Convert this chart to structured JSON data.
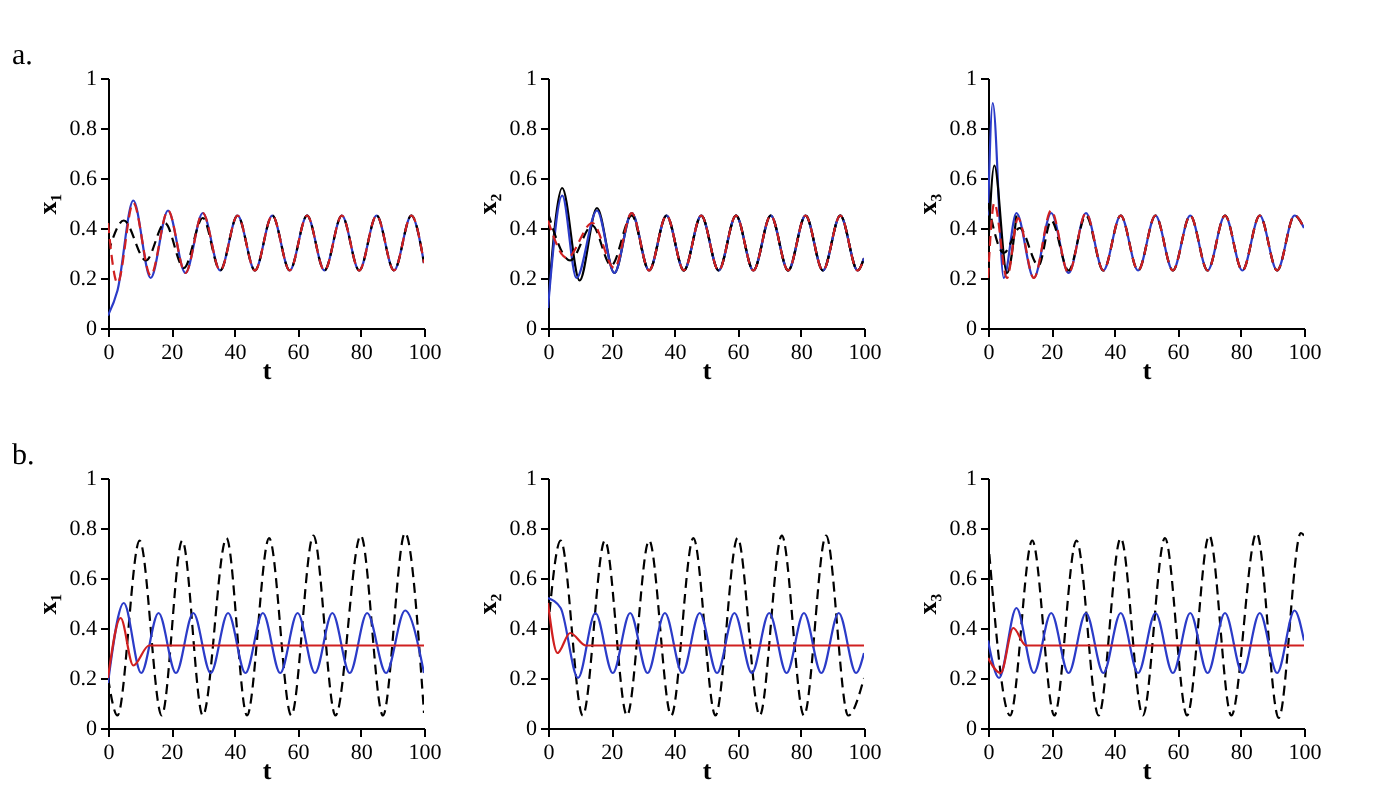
{
  "chart_data": [
    {
      "type": "line",
      "annotations": [
        "a."
      ],
      "xlabel": "t",
      "ylabel": "x₁",
      "xlim": [
        0,
        100
      ],
      "ylim": [
        0,
        1
      ],
      "xticks": [
        0,
        20,
        40,
        60,
        80,
        100
      ],
      "yticks": [
        0,
        0.2,
        0.4,
        0.6,
        0.8,
        1
      ],
      "grid": false,
      "series": [
        {
          "color": "#2b3bc8",
          "line_style": "solid",
          "x": [
            0,
            3,
            8,
            13.5,
            19,
            24.5,
            30,
            35.5,
            41,
            46.5,
            52,
            57.5,
            63,
            68.5,
            74,
            79.5,
            85,
            90.5,
            96,
            100
          ],
          "values": [
            0.05,
            0.15,
            0.51,
            0.2,
            0.47,
            0.22,
            0.46,
            0.23,
            0.45,
            0.23,
            0.45,
            0.23,
            0.45,
            0.23,
            0.45,
            0.23,
            0.45,
            0.23,
            0.45,
            0.26
          ]
        },
        {
          "color": "#000000",
          "line_style": "dashed",
          "x": [
            0,
            5,
            12,
            18,
            24,
            30,
            35.5,
            41,
            46.5,
            52,
            57.5,
            63,
            68.5,
            74,
            79.5,
            85,
            90.5,
            96,
            100
          ],
          "values": [
            0.3,
            0.43,
            0.27,
            0.42,
            0.24,
            0.44,
            0.23,
            0.45,
            0.23,
            0.45,
            0.23,
            0.45,
            0.23,
            0.45,
            0.23,
            0.45,
            0.23,
            0.45,
            0.26
          ]
        },
        {
          "color": "#d02020",
          "line_style": "dashed",
          "x": [
            0,
            3,
            8,
            13.5,
            19,
            24.5,
            30,
            35.5,
            41,
            46.5,
            52,
            57.5,
            63,
            68.5,
            74,
            79.5,
            85,
            90.5,
            96,
            100
          ],
          "values": [
            0.42,
            0.18,
            0.5,
            0.21,
            0.47,
            0.22,
            0.46,
            0.23,
            0.45,
            0.23,
            0.45,
            0.23,
            0.45,
            0.23,
            0.45,
            0.23,
            0.45,
            0.23,
            0.45,
            0.26
          ]
        }
      ]
    },
    {
      "type": "line",
      "xlabel": "t",
      "ylabel": "x₂",
      "xlim": [
        0,
        100
      ],
      "ylim": [
        0,
        1
      ],
      "xticks": [
        0,
        20,
        40,
        60,
        80,
        100
      ],
      "yticks": [
        0,
        0.2,
        0.4,
        0.6,
        0.8,
        1
      ],
      "grid": false,
      "series": [
        {
          "color": "#000000",
          "line_style": "solid",
          "x": [
            0,
            4.5,
            10,
            15.5,
            21,
            26.5,
            32,
            37.5,
            43,
            48.5,
            54,
            59.5,
            65,
            70.5,
            76,
            81.5,
            87,
            92.5,
            98,
            100
          ],
          "values": [
            0.1,
            0.56,
            0.19,
            0.48,
            0.22,
            0.46,
            0.23,
            0.45,
            0.23,
            0.45,
            0.23,
            0.45,
            0.23,
            0.45,
            0.23,
            0.45,
            0.23,
            0.45,
            0.23,
            0.28
          ]
        },
        {
          "color": "#2b3bc8",
          "line_style": "solid",
          "x": [
            0,
            4.5,
            9,
            15.5,
            21,
            26.5,
            32,
            37.5,
            43,
            48.5,
            54,
            59.5,
            65,
            70.5,
            76,
            81.5,
            87,
            92.5,
            98,
            100
          ],
          "values": [
            0.08,
            0.53,
            0.2,
            0.47,
            0.22,
            0.46,
            0.23,
            0.45,
            0.23,
            0.45,
            0.23,
            0.45,
            0.23,
            0.45,
            0.23,
            0.45,
            0.23,
            0.45,
            0.23,
            0.28
          ]
        },
        {
          "color": "#000000",
          "line_style": "dashed",
          "x": [
            0,
            7,
            14,
            20,
            26.5,
            32,
            37.5,
            43,
            48.5,
            54,
            59.5,
            65,
            70.5,
            76,
            81.5,
            87,
            92.5,
            98,
            100
          ],
          "values": [
            0.46,
            0.27,
            0.41,
            0.25,
            0.45,
            0.23,
            0.45,
            0.23,
            0.45,
            0.23,
            0.45,
            0.23,
            0.45,
            0.23,
            0.45,
            0.23,
            0.45,
            0.23,
            0.28
          ]
        },
        {
          "color": "#d02020",
          "line_style": "dashed",
          "x": [
            0,
            6,
            14,
            21,
            26.5,
            32,
            37.5,
            43,
            48.5,
            54,
            59.5,
            65,
            70.5,
            76,
            81.5,
            87,
            92.5,
            98,
            100
          ],
          "values": [
            0.43,
            0.28,
            0.42,
            0.24,
            0.46,
            0.23,
            0.45,
            0.23,
            0.45,
            0.23,
            0.45,
            0.23,
            0.45,
            0.23,
            0.45,
            0.23,
            0.45,
            0.23,
            0.28
          ]
        }
      ]
    },
    {
      "type": "line",
      "xlabel": "t",
      "ylabel": "x₃",
      "xlim": [
        0,
        100
      ],
      "ylim": [
        0,
        1
      ],
      "xticks": [
        0,
        20,
        40,
        60,
        80,
        100
      ],
      "yticks": [
        0,
        0.2,
        0.4,
        0.6,
        0.8,
        1
      ],
      "grid": false,
      "series": [
        {
          "color": "#2b3bc8",
          "line_style": "solid",
          "x": [
            0,
            1.5,
            5,
            9,
            14.5,
            20,
            25.5,
            31,
            36.5,
            42,
            47.5,
            53,
            58.5,
            64,
            69.5,
            75,
            80.5,
            86,
            91.5,
            97,
            100
          ],
          "values": [
            0.45,
            0.9,
            0.2,
            0.46,
            0.2,
            0.46,
            0.22,
            0.46,
            0.23,
            0.45,
            0.23,
            0.45,
            0.23,
            0.45,
            0.23,
            0.45,
            0.23,
            0.45,
            0.23,
            0.45,
            0.4
          ]
        },
        {
          "color": "#000000",
          "line_style": "solid",
          "x": [
            0,
            2,
            6,
            9
          ],
          "values": [
            0.3,
            0.65,
            0.22,
            0.45
          ]
        },
        {
          "color": "#000000",
          "line_style": "dashed",
          "x": [
            0,
            5,
            10,
            16,
            20,
            25.5,
            31,
            36.5,
            42,
            47.5,
            53,
            58.5,
            64,
            69.5,
            75,
            80.5,
            86,
            91.5,
            97,
            100
          ],
          "values": [
            0.5,
            0.3,
            0.4,
            0.25,
            0.43,
            0.23,
            0.45,
            0.23,
            0.45,
            0.23,
            0.45,
            0.23,
            0.45,
            0.23,
            0.45,
            0.23,
            0.45,
            0.23,
            0.45,
            0.4
          ]
        },
        {
          "color": "#d02020",
          "line_style": "dashed",
          "x": [
            0,
            2,
            6,
            9.5,
            14.5,
            20,
            25.5,
            31,
            36.5,
            42,
            47.5,
            53,
            58.5,
            64,
            69.5,
            75,
            80.5,
            86,
            91.5,
            97,
            100
          ],
          "values": [
            0.2,
            0.5,
            0.2,
            0.44,
            0.2,
            0.47,
            0.22,
            0.46,
            0.23,
            0.45,
            0.23,
            0.45,
            0.23,
            0.45,
            0.23,
            0.45,
            0.23,
            0.45,
            0.23,
            0.45,
            0.4
          ]
        }
      ]
    },
    {
      "type": "line",
      "annotations": [
        "b."
      ],
      "xlabel": "t",
      "ylabel": "x₁",
      "xlim": [
        0,
        100
      ],
      "ylim": [
        0,
        1
      ],
      "xticks": [
        0,
        20,
        40,
        60,
        80,
        100
      ],
      "yticks": [
        0,
        0.2,
        0.4,
        0.6,
        0.8,
        1
      ],
      "grid": false,
      "series": [
        {
          "color": "#000000",
          "line_style": "dashed",
          "x": [
            0,
            3,
            10,
            17,
            23.5,
            30,
            37.5,
            44,
            51,
            58,
            65,
            72,
            80,
            87,
            94,
            100
          ],
          "values": [
            0.2,
            0.05,
            0.75,
            0.05,
            0.75,
            0.05,
            0.76,
            0.05,
            0.76,
            0.05,
            0.77,
            0.05,
            0.77,
            0.05,
            0.78,
            0.06
          ]
        },
        {
          "color": "#2b3bc8",
          "line_style": "solid",
          "x": [
            0,
            5,
            10.5,
            16,
            21.5,
            27,
            32.5,
            38,
            43.5,
            49,
            54.5,
            60,
            65.5,
            71,
            76.5,
            82,
            88,
            94,
            100
          ],
          "values": [
            0.18,
            0.5,
            0.22,
            0.46,
            0.22,
            0.46,
            0.22,
            0.46,
            0.22,
            0.46,
            0.22,
            0.46,
            0.22,
            0.46,
            0.22,
            0.46,
            0.22,
            0.47,
            0.22
          ]
        },
        {
          "color": "#d02020",
          "line_style": "solid",
          "x": [
            0,
            4,
            8,
            13,
            100
          ],
          "values": [
            0.2,
            0.44,
            0.25,
            0.33,
            0.33
          ]
        }
      ]
    },
    {
      "type": "line",
      "xlabel": "t",
      "ylabel": "x₂",
      "xlim": [
        0,
        100
      ],
      "ylim": [
        0,
        1
      ],
      "xticks": [
        0,
        20,
        40,
        60,
        80,
        100
      ],
      "yticks": [
        0,
        0.2,
        0.4,
        0.6,
        0.8,
        1
      ],
      "grid": false,
      "series": [
        {
          "color": "#000000",
          "line_style": "dashed",
          "x": [
            0,
            4,
            11,
            18,
            25,
            32,
            39,
            46,
            53,
            60,
            67,
            74,
            81,
            88,
            95,
            100
          ],
          "values": [
            0.4,
            0.75,
            0.05,
            0.75,
            0.05,
            0.75,
            0.05,
            0.76,
            0.05,
            0.76,
            0.05,
            0.77,
            0.05,
            0.77,
            0.05,
            0.2
          ]
        },
        {
          "color": "#2b3bc8",
          "line_style": "solid",
          "x": [
            0,
            4,
            9.5,
            15,
            20.5,
            26,
            31.5,
            37,
            42.5,
            48,
            53.5,
            59,
            64.5,
            70,
            75.5,
            81,
            86.5,
            92,
            97.5,
            100
          ],
          "values": [
            0.52,
            0.48,
            0.2,
            0.46,
            0.22,
            0.46,
            0.22,
            0.46,
            0.22,
            0.46,
            0.22,
            0.46,
            0.22,
            0.46,
            0.22,
            0.46,
            0.22,
            0.46,
            0.22,
            0.3
          ]
        },
        {
          "color": "#d02020",
          "line_style": "solid",
          "x": [
            0,
            3,
            7,
            12,
            100
          ],
          "values": [
            0.5,
            0.3,
            0.38,
            0.33,
            0.33
          ]
        }
      ]
    },
    {
      "type": "line",
      "xlabel": "t",
      "ylabel": "x₃",
      "xlim": [
        0,
        100
      ],
      "ylim": [
        0,
        1
      ],
      "xticks": [
        0,
        20,
        40,
        60,
        80,
        100
      ],
      "yticks": [
        0,
        0.2,
        0.4,
        0.6,
        0.8,
        1
      ],
      "grid": false,
      "series": [
        {
          "color": "#000000",
          "line_style": "dashed",
          "x": [
            0,
            7,
            14,
            21,
            28,
            35,
            42,
            49,
            56,
            63,
            70,
            77,
            85,
            92,
            99,
            100
          ],
          "values": [
            0.76,
            0.05,
            0.75,
            0.05,
            0.75,
            0.05,
            0.76,
            0.05,
            0.76,
            0.05,
            0.77,
            0.05,
            0.78,
            0.04,
            0.78,
            0.77
          ]
        },
        {
          "color": "#2b3bc8",
          "line_style": "solid",
          "x": [
            0,
            3.5,
            9,
            14.5,
            20,
            25.5,
            31,
            36.5,
            42,
            47.5,
            53,
            58.5,
            64,
            69.5,
            75,
            80.5,
            86,
            91.5,
            97,
            100
          ],
          "values": [
            0.35,
            0.2,
            0.48,
            0.22,
            0.46,
            0.22,
            0.46,
            0.22,
            0.46,
            0.22,
            0.46,
            0.22,
            0.46,
            0.22,
            0.46,
            0.22,
            0.46,
            0.22,
            0.47,
            0.35
          ]
        },
        {
          "color": "#d02020",
          "line_style": "solid",
          "x": [
            0,
            4,
            8,
            12,
            100
          ],
          "values": [
            0.28,
            0.22,
            0.4,
            0.33,
            0.33
          ]
        }
      ]
    }
  ]
}
